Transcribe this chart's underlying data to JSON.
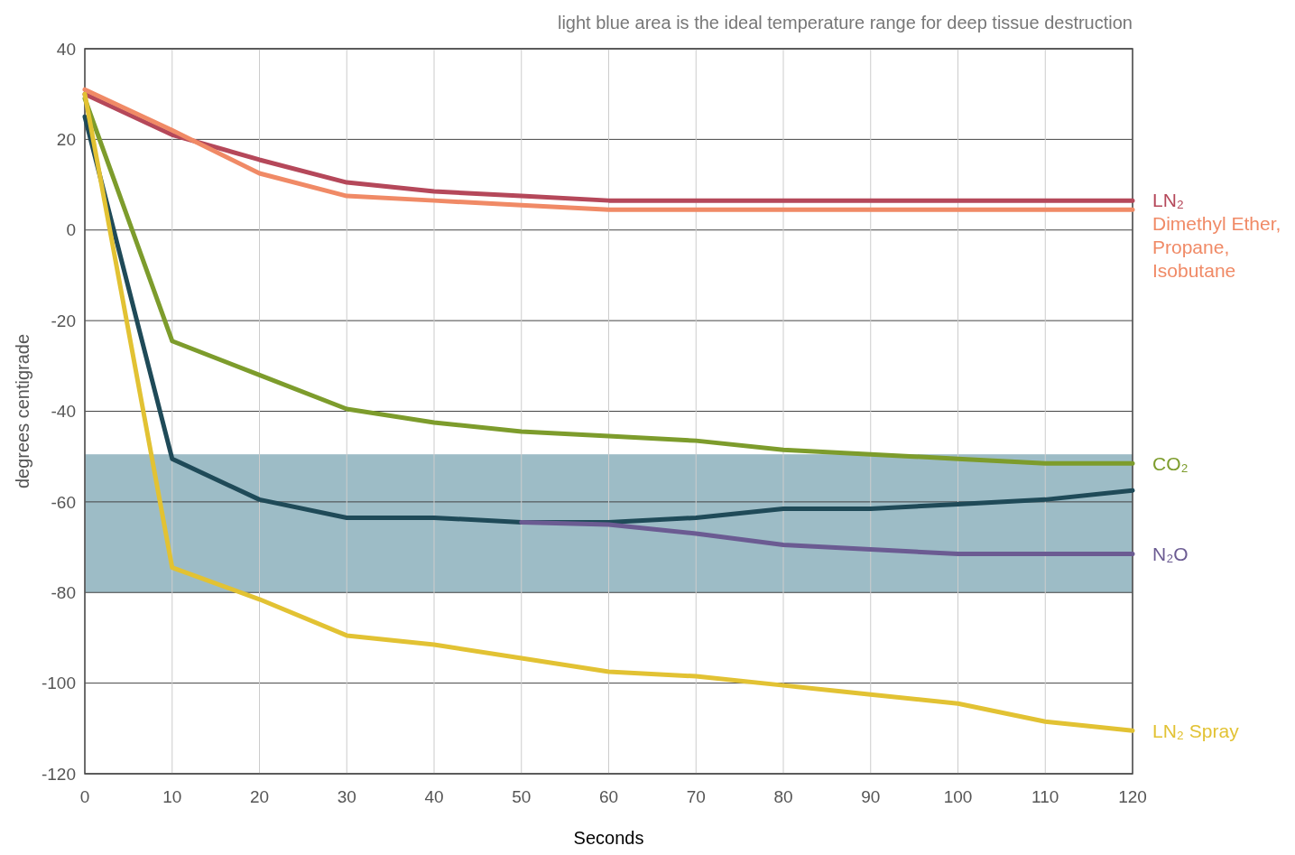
{
  "chart_data": {
    "type": "line",
    "xlabel": "Seconds",
    "ylabel": "degrees centigrade",
    "annotations": [
      "light blue area is the ideal temperature range for deep tissue destruction"
    ],
    "x": [
      0,
      10,
      20,
      30,
      40,
      50,
      60,
      70,
      80,
      90,
      100,
      110,
      120
    ],
    "series": [
      {
        "name": "LN₂",
        "color": "#b5485a",
        "values": [
          30,
          21,
          15.5,
          10.5,
          8.5,
          7.5,
          6.5,
          6.5,
          6.5,
          6.5,
          6.5,
          6.5,
          6.5
        ]
      },
      {
        "name": "Dimethyl Ether, Propane, Isobutane",
        "color": "#f08a66",
        "values": [
          31,
          22,
          12.5,
          7.5,
          6.5,
          5.5,
          4.5,
          4.5,
          4.5,
          4.5,
          4.5,
          4.5,
          4.5
        ]
      },
      {
        "name": "CO₂",
        "color": "#7d9c2c",
        "values": [
          29,
          -24.5,
          -32,
          -39.5,
          -42.5,
          -44.5,
          -45.5,
          -46.5,
          -48.5,
          -49.5,
          -50.5,
          -51.5,
          -51.5
        ]
      },
      {
        "color": "#1f4a58",
        "values": [
          25,
          -50.5,
          -59.5,
          -63.5,
          -63.5,
          -64.5,
          -64.5,
          -63.5,
          -61.5,
          -61.5,
          -60.5,
          -59.5,
          -57.5
        ]
      },
      {
        "name": "N₂O",
        "color": "#6b5b92",
        "values": [
          null,
          null,
          null,
          null,
          null,
          -64.5,
          -65,
          -67,
          -69.5,
          -70.5,
          -71.5,
          -71.5,
          -71.5
        ]
      },
      {
        "name": "LN₂ Spray",
        "color": "#e2c233",
        "values": [
          30,
          -74.5,
          -81.5,
          -89.5,
          -91.5,
          -94.5,
          -97.5,
          -98.5,
          -100.5,
          -102.5,
          -104.5,
          -108.5,
          -110.5
        ]
      }
    ],
    "xlim": [
      0,
      120
    ],
    "xticks": [
      0,
      10,
      20,
      30,
      40,
      50,
      60,
      70,
      80,
      90,
      100,
      110,
      120
    ],
    "ylim": [
      -120,
      40
    ],
    "yticks": [
      -120,
      -100,
      -80,
      -60,
      -40,
      -20,
      0,
      20,
      40
    ],
    "bands": [
      {
        "axis": "y",
        "from": -80,
        "to": -49.5,
        "color": "#9dbcc6"
      }
    ],
    "grid": true,
    "legend": false,
    "line_style": "solid",
    "marker": "none"
  }
}
